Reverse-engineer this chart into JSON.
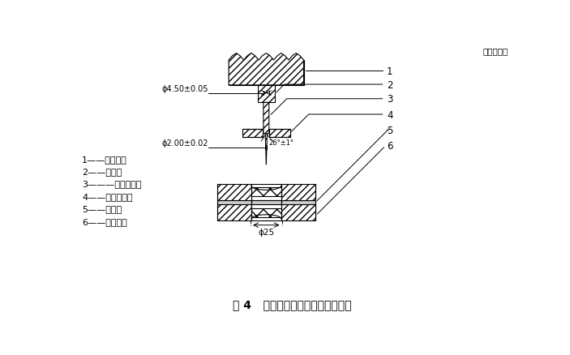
{
  "title": "图 4   救援靴靴帮抗刺穿装置示意图",
  "unit_label": "单位为毫米",
  "legend_items": [
    "1——拉力机；",
    "2——压头；",
    "3———穿刺钢针；",
    "4——定位压块；",
    "5——试样；",
    "6——支承块。"
  ],
  "background": "#ffffff",
  "line_color": "#000000"
}
